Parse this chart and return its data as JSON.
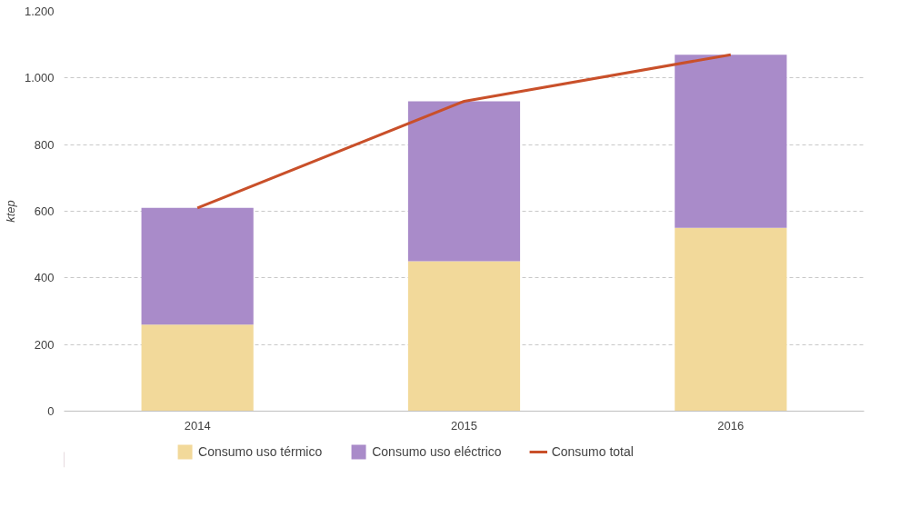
{
  "chart_data": {
    "type": "bar",
    "stacked": true,
    "ylabel": "ktep",
    "categories": [
      "2014",
      "2015",
      "2016"
    ],
    "series": [
      {
        "name": "Consumo uso térmico",
        "color": "#f2d99a",
        "values": [
          260,
          450,
          550
        ]
      },
      {
        "name": "Consumo uso eléctrico",
        "color": "#a98bc9",
        "values": [
          350,
          480,
          520
        ]
      },
      {
        "name": "Consumo total",
        "type": "line",
        "color": "#c9502a",
        "values": [
          610,
          930,
          1070
        ]
      }
    ],
    "ylim": [
      0,
      1200
    ],
    "yticks": [
      0,
      200,
      400,
      600,
      800,
      {
        "value": 1000,
        "label": "1.000"
      },
      {
        "value": 1200,
        "label": "1.200"
      }
    ],
    "grid": "y",
    "legend": "bottom",
    "line_style": "solid"
  }
}
